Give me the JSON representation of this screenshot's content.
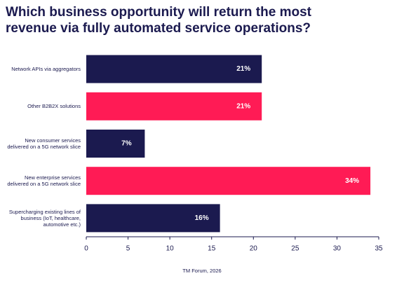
{
  "chart_data": {
    "type": "barh",
    "title": "Which business opportunity will return the most revenue via fully automated service operations?",
    "categories": [
      "Network APIs via aggregators",
      "Other B2B2X solutions",
      "New consumer services delivered on a 5G network slice",
      "New enterprise services delivered on a 5G network slice",
      "Supercharging existing lines of business (IoT, healthcare, automotive etc.)"
    ],
    "values": [
      21,
      21,
      7,
      34,
      16
    ],
    "value_labels": [
      "21%",
      "21%",
      "7%",
      "34%",
      "16%"
    ],
    "colors": [
      "#1b1a4f",
      "#ff1b55",
      "#1b1a4f",
      "#ff1b55",
      "#1b1a4f"
    ],
    "xlim": [
      0,
      35
    ],
    "xticks": [
      0,
      5,
      10,
      15,
      20,
      25,
      30,
      35
    ],
    "source": "TM Forum, 2026"
  }
}
